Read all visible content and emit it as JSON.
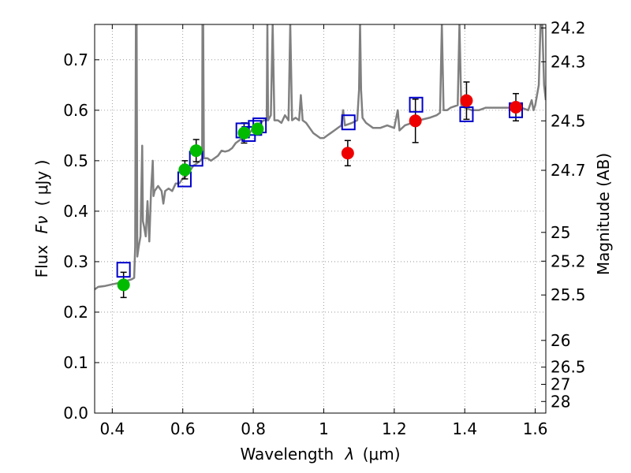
{
  "chart_data": {
    "type": "scatter",
    "xlabel_text": "Wavelength",
    "xlabel_symbol": "λ",
    "xlabel_unit": "(μm)",
    "ylabel_text": "Flux",
    "ylabel_symbol": "Fν",
    "ylabel_unit": "( μJy )",
    "y2label": "Magnitude (AB)",
    "xlim": [
      0.35,
      1.63
    ],
    "ylim": [
      0.0,
      0.77
    ],
    "grid": true,
    "x_ticks": [
      0.4,
      0.6,
      0.8,
      1.0,
      1.2,
      1.4,
      1.6
    ],
    "x_tick_labels": [
      "0.4",
      "0.6",
      "0.8",
      "1",
      "1.2",
      "1.4",
      "1.6"
    ],
    "y_ticks": [
      0.0,
      0.1,
      0.2,
      0.3,
      0.4,
      0.5,
      0.6,
      0.7
    ],
    "y_tick_labels": [
      "0.0",
      "0.1",
      "0.2",
      "0.3",
      "0.4",
      "0.5",
      "0.6",
      "0.7"
    ],
    "y2_ticks": [
      {
        "label": "24.2",
        "flux": 0.763
      },
      {
        "label": "24.3",
        "flux": 0.696
      },
      {
        "label": "24.5",
        "flux": 0.579
      },
      {
        "label": "24.7",
        "flux": 0.481
      },
      {
        "label": "25",
        "flux": 0.358
      },
      {
        "label": "25.2",
        "flux": 0.301
      },
      {
        "label": "25.5",
        "flux": 0.234
      },
      {
        "label": "26",
        "flux": 0.144
      },
      {
        "label": "26.5",
        "flux": 0.091
      },
      {
        "label": "27",
        "flux": 0.057
      },
      {
        "label": "28",
        "flux": 0.023
      }
    ],
    "series": [
      {
        "kind": "model_spectrum",
        "color": "#808080",
        "points": [
          [
            0.35,
            0.245
          ],
          [
            0.36,
            0.25
          ],
          [
            0.38,
            0.252
          ],
          [
            0.4,
            0.255
          ],
          [
            0.42,
            0.258
          ],
          [
            0.44,
            0.262
          ],
          [
            0.455,
            0.265
          ],
          [
            0.462,
            0.268
          ],
          [
            0.465,
            0.33
          ],
          [
            0.467,
            0.77
          ],
          [
            0.469,
            0.77
          ],
          [
            0.471,
            0.31
          ],
          [
            0.475,
            0.33
          ],
          [
            0.48,
            0.35
          ],
          [
            0.485,
            0.53
          ],
          [
            0.487,
            0.38
          ],
          [
            0.49,
            0.37
          ],
          [
            0.495,
            0.35
          ],
          [
            0.5,
            0.42
          ],
          [
            0.505,
            0.34
          ],
          [
            0.51,
            0.44
          ],
          [
            0.515,
            0.5
          ],
          [
            0.517,
            0.43
          ],
          [
            0.52,
            0.44
          ],
          [
            0.53,
            0.45
          ],
          [
            0.54,
            0.44
          ],
          [
            0.545,
            0.415
          ],
          [
            0.55,
            0.44
          ],
          [
            0.56,
            0.445
          ],
          [
            0.57,
            0.44
          ],
          [
            0.58,
            0.455
          ],
          [
            0.59,
            0.455
          ],
          [
            0.6,
            0.465
          ],
          [
            0.61,
            0.47
          ],
          [
            0.62,
            0.48
          ],
          [
            0.63,
            0.49
          ],
          [
            0.64,
            0.495
          ],
          [
            0.65,
            0.5
          ],
          [
            0.655,
            0.505
          ],
          [
            0.656,
            0.77
          ],
          [
            0.658,
            0.77
          ],
          [
            0.66,
            0.505
          ],
          [
            0.67,
            0.505
          ],
          [
            0.68,
            0.5
          ],
          [
            0.69,
            0.505
          ],
          [
            0.7,
            0.51
          ],
          [
            0.71,
            0.52
          ],
          [
            0.72,
            0.518
          ],
          [
            0.73,
            0.52
          ],
          [
            0.74,
            0.525
          ],
          [
            0.75,
            0.535
          ],
          [
            0.76,
            0.54
          ],
          [
            0.77,
            0.545
          ],
          [
            0.78,
            0.55
          ],
          [
            0.79,
            0.555
          ],
          [
            0.8,
            0.565
          ],
          [
            0.81,
            0.57
          ],
          [
            0.82,
            0.575
          ],
          [
            0.83,
            0.58
          ],
          [
            0.838,
            0.58
          ],
          [
            0.84,
            0.77
          ],
          [
            0.842,
            0.58
          ],
          [
            0.85,
            0.59
          ],
          [
            0.855,
            0.77
          ],
          [
            0.86,
            0.58
          ],
          [
            0.87,
            0.58
          ],
          [
            0.88,
            0.575
          ],
          [
            0.89,
            0.59
          ],
          [
            0.9,
            0.58
          ],
          [
            0.905,
            0.77
          ],
          [
            0.91,
            0.58
          ],
          [
            0.92,
            0.585
          ],
          [
            0.93,
            0.58
          ],
          [
            0.935,
            0.63
          ],
          [
            0.94,
            0.58
          ],
          [
            0.95,
            0.575
          ],
          [
            0.96,
            0.565
          ],
          [
            0.97,
            0.555
          ],
          [
            0.98,
            0.55
          ],
          [
            0.99,
            0.545
          ],
          [
            1.0,
            0.545
          ],
          [
            1.01,
            0.55
          ],
          [
            1.02,
            0.555
          ],
          [
            1.03,
            0.56
          ],
          [
            1.04,
            0.565
          ],
          [
            1.05,
            0.57
          ],
          [
            1.055,
            0.6
          ],
          [
            1.06,
            0.57
          ],
          [
            1.08,
            0.575
          ],
          [
            1.095,
            0.58
          ],
          [
            1.1,
            0.64
          ],
          [
            1.103,
            0.77
          ],
          [
            1.106,
            0.64
          ],
          [
            1.11,
            0.585
          ],
          [
            1.12,
            0.575
          ],
          [
            1.14,
            0.565
          ],
          [
            1.16,
            0.565
          ],
          [
            1.18,
            0.57
          ],
          [
            1.2,
            0.565
          ],
          [
            1.21,
            0.6
          ],
          [
            1.215,
            0.56
          ],
          [
            1.23,
            0.57
          ],
          [
            1.25,
            0.575
          ],
          [
            1.27,
            0.58
          ],
          [
            1.3,
            0.585
          ],
          [
            1.32,
            0.59
          ],
          [
            1.33,
            0.595
          ],
          [
            1.335,
            0.77
          ],
          [
            1.34,
            0.6
          ],
          [
            1.35,
            0.6
          ],
          [
            1.36,
            0.605
          ],
          [
            1.38,
            0.61
          ],
          [
            1.385,
            0.77
          ],
          [
            1.39,
            0.61
          ],
          [
            1.4,
            0.605
          ],
          [
            1.42,
            0.6
          ],
          [
            1.44,
            0.6
          ],
          [
            1.46,
            0.605
          ],
          [
            1.48,
            0.605
          ],
          [
            1.5,
            0.605
          ],
          [
            1.52,
            0.605
          ],
          [
            1.54,
            0.605
          ],
          [
            1.56,
            0.605
          ],
          [
            1.58,
            0.6
          ],
          [
            1.59,
            0.62
          ],
          [
            1.595,
            0.6
          ],
          [
            1.6,
            0.61
          ],
          [
            1.61,
            0.65
          ],
          [
            1.615,
            0.77
          ],
          [
            1.62,
            0.77
          ],
          [
            1.625,
            0.65
          ],
          [
            1.63,
            0.62
          ]
        ]
      },
      {
        "kind": "model_synthetic_photometry",
        "marker": "square-open",
        "color": "#0000cc",
        "points": [
          [
            0.432,
            0.284
          ],
          [
            0.605,
            0.463
          ],
          [
            0.638,
            0.504
          ],
          [
            0.77,
            0.56
          ],
          [
            0.787,
            0.553
          ],
          [
            0.805,
            0.565
          ],
          [
            0.818,
            0.57
          ],
          [
            1.07,
            0.576
          ],
          [
            1.262,
            0.611
          ],
          [
            1.405,
            0.592
          ],
          [
            1.545,
            0.6
          ]
        ]
      },
      {
        "kind": "observed_optical",
        "marker": "circle-filled",
        "color": "#00bb00",
        "points": [
          {
            "x": 0.432,
            "y": 0.254,
            "err": 0.025
          },
          {
            "x": 0.606,
            "y": 0.482,
            "err": 0.018
          },
          {
            "x": 0.638,
            "y": 0.52,
            "err": 0.022
          },
          {
            "x": 0.774,
            "y": 0.555,
            "err": 0.02
          },
          {
            "x": 0.812,
            "y": 0.563,
            "err": 0.0
          }
        ]
      },
      {
        "kind": "observed_nir",
        "marker": "circle-filled",
        "color": "#ee0000",
        "points": [
          {
            "x": 1.068,
            "y": 0.515,
            "err": 0.025
          },
          {
            "x": 1.26,
            "y": 0.579,
            "err": 0.043
          },
          {
            "x": 1.405,
            "y": 0.619,
            "err": 0.037
          },
          {
            "x": 1.545,
            "y": 0.606,
            "err": 0.027
          }
        ]
      }
    ]
  }
}
